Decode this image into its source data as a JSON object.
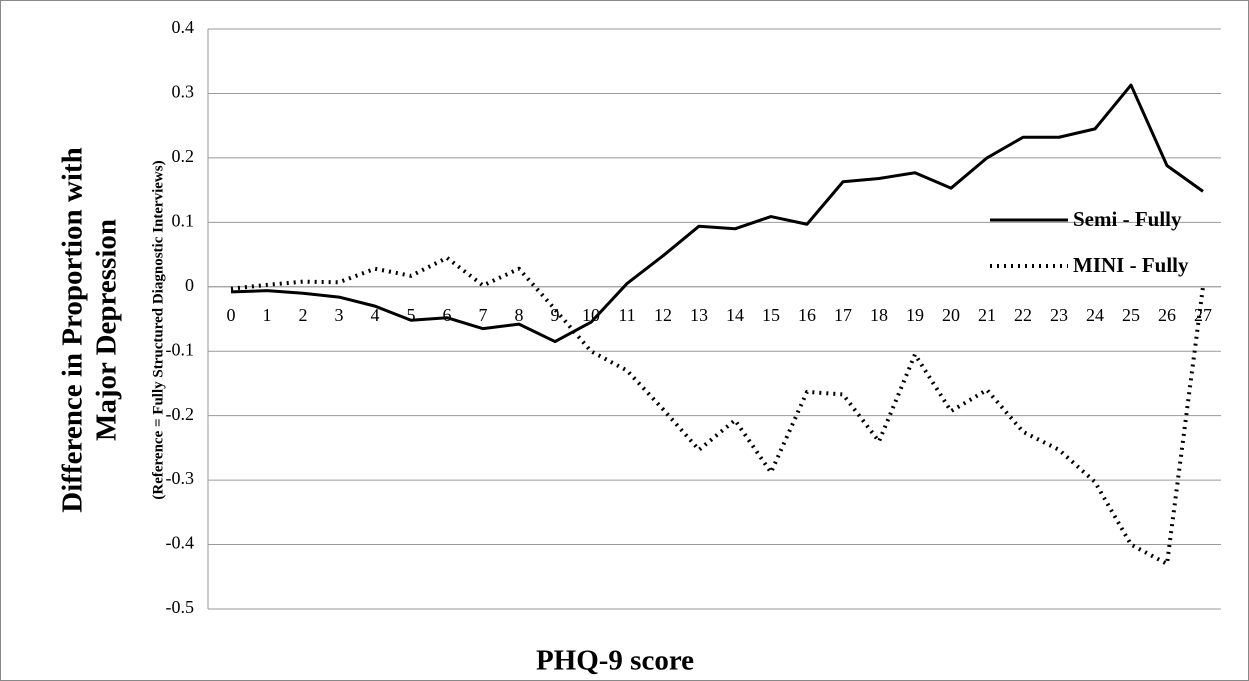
{
  "chart_data": {
    "type": "line",
    "ylabel_lines": [
      "Difference in Proportion with",
      "Major Depression"
    ],
    "ylabel_note": "(Reference = Fully Structured Diagnostic Interviews)",
    "xlabel": "PHQ-9 score",
    "categories": [
      0,
      1,
      2,
      3,
      4,
      5,
      6,
      7,
      8,
      9,
      10,
      11,
      12,
      13,
      14,
      15,
      16,
      17,
      18,
      19,
      20,
      21,
      22,
      23,
      24,
      25,
      26,
      27
    ],
    "series": [
      {
        "name": "Semi - Fully",
        "color": "#000000",
        "dash": "solid",
        "values": [
          -0.008,
          -0.006,
          -0.01,
          -0.016,
          -0.03,
          -0.052,
          -0.048,
          -0.065,
          -0.058,
          -0.085,
          -0.055,
          0.005,
          0.048,
          0.094,
          0.09,
          0.109,
          0.097,
          0.163,
          0.168,
          0.177,
          0.153,
          0.2,
          0.232,
          0.232,
          0.245,
          0.313,
          0.188,
          0.148
        ]
      },
      {
        "name": "MINI - Fully",
        "color": "#000000",
        "dash": "dotted",
        "values": [
          -0.003,
          0.003,
          0.008,
          0.007,
          0.028,
          0.017,
          0.045,
          0.002,
          0.028,
          -0.035,
          -0.1,
          -0.13,
          -0.19,
          -0.253,
          -0.207,
          -0.288,
          -0.163,
          -0.167,
          -0.24,
          -0.105,
          -0.193,
          -0.16,
          -0.225,
          -0.253,
          -0.303,
          -0.4,
          -0.43,
          0.0
        ]
      }
    ],
    "ylim": [
      -0.5,
      0.4
    ],
    "yticks": [
      -0.5,
      -0.4,
      -0.3,
      -0.2,
      -0.1,
      0,
      0.1,
      0.2,
      0.3,
      0.4
    ],
    "grid": true,
    "legend": "right"
  }
}
